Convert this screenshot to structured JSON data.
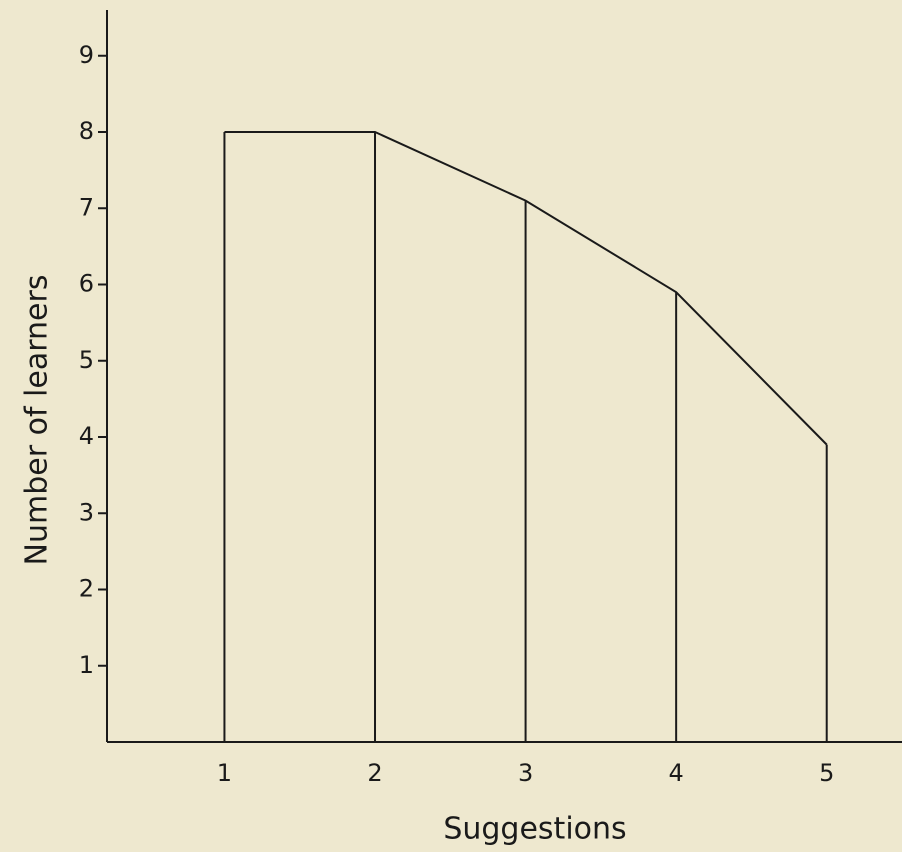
{
  "chart_data": {
    "type": "line",
    "x_label": "Suggestions",
    "y_label": "Number of learners",
    "x": [
      1,
      2,
      3,
      4,
      5
    ],
    "values": [
      8,
      8,
      7.1,
      5.9,
      3.9
    ],
    "color": "#1a1a1a",
    "xlim": [
      0.22,
      5.5
    ],
    "xticks": [
      1,
      2,
      3,
      4,
      5
    ],
    "ylim": [
      0,
      9.6
    ],
    "yticks": [
      1,
      2,
      3,
      4,
      5,
      6,
      7,
      8,
      9
    ]
  }
}
